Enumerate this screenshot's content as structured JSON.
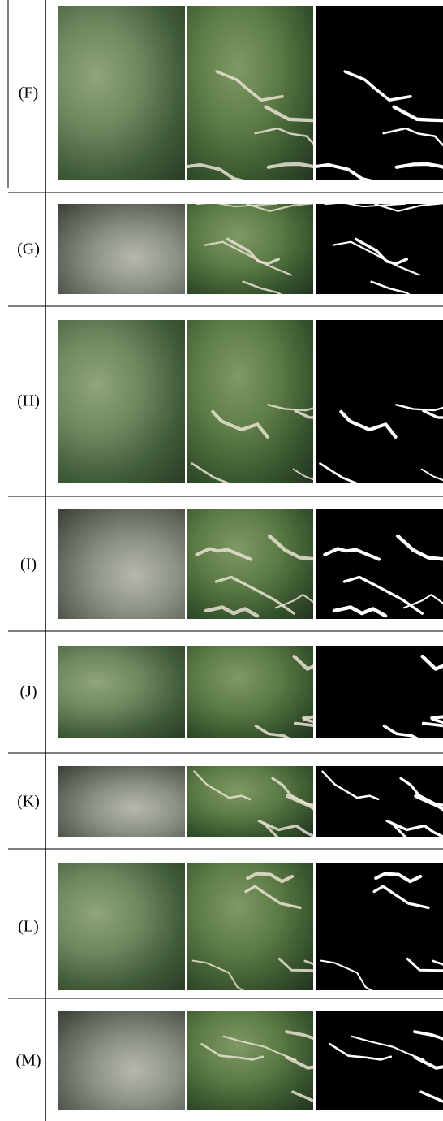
{
  "rows": [
    {
      "label": "(F)"
    },
    {
      "label": "(G)"
    },
    {
      "label": "(H)"
    },
    {
      "label": "(I)"
    },
    {
      "label": "(J)"
    },
    {
      "label": "(K)"
    },
    {
      "label": "(L)"
    },
    {
      "label": "(M)"
    }
  ]
}
